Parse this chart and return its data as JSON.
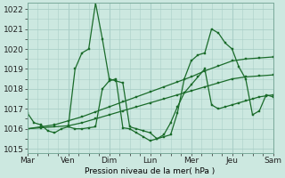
{
  "xlabel": "Pression niveau de la mer( hPa )",
  "bg_color": "#cce8e0",
  "grid_color": "#aacfc8",
  "line_color": "#1a6b2a",
  "ylim": [
    1014.8,
    1022.3
  ],
  "xlim": [
    0,
    18
  ],
  "day_labels": [
    "Mar",
    "Ven",
    "Dim",
    "Lun",
    "Mer",
    "Jeu",
    "Sam"
  ],
  "day_positions": [
    0,
    3,
    6,
    9,
    12,
    15,
    18
  ],
  "yticks": [
    1015,
    1016,
    1017,
    1018,
    1019,
    1020,
    1021,
    1022
  ],
  "font_size": 6.5,
  "line_lw": 0.9,
  "marker_size": 2.0,
  "series": [
    {
      "x": [
        0,
        0.5,
        1,
        1.5,
        2,
        2.5,
        3,
        3.5,
        4,
        4.5,
        5,
        5.5,
        6,
        6.5,
        7,
        7.5,
        8,
        8.5,
        9,
        9.5,
        10,
        10.5,
        11,
        11.5,
        12,
        12.5,
        13,
        13.5,
        14,
        14.5,
        15,
        15.5,
        16,
        16.5,
        17,
        17.5,
        18
      ],
      "y": [
        1016.8,
        1016.3,
        1016.2,
        1015.9,
        1015.8,
        1016.0,
        1016.1,
        1019.0,
        1019.8,
        1020.0,
        1022.3,
        1020.5,
        1018.5,
        1018.4,
        1018.3,
        1016.1,
        1016.0,
        1015.9,
        1015.8,
        1015.5,
        1015.6,
        1015.7,
        1016.8,
        1018.5,
        1019.4,
        1019.7,
        1019.8,
        1021.0,
        1020.8,
        1020.3,
        1020.0,
        1019.1,
        1018.5,
        1016.7,
        1016.9,
        1017.7,
        1017.6
      ]
    },
    {
      "x": [
        3,
        3.5,
        4,
        4.5,
        5,
        5.5,
        6,
        6.5,
        7,
        7.5,
        8,
        8.5,
        9,
        9.5,
        10,
        10.5,
        11,
        11.5,
        12,
        12.5,
        13,
        13.5,
        14,
        14.5,
        15,
        15.5,
        16,
        16.5,
        17,
        17.5,
        18
      ],
      "y": [
        1016.1,
        1016.0,
        1016.0,
        1016.05,
        1016.1,
        1018.0,
        1018.4,
        1018.5,
        1016.05,
        1016.0,
        1015.8,
        1015.6,
        1015.4,
        1015.5,
        1015.7,
        1016.3,
        1017.1,
        1017.8,
        1018.2,
        1018.6,
        1019.0,
        1017.2,
        1017.0,
        1017.1,
        1017.2,
        1017.3,
        1017.4,
        1017.5,
        1017.6,
        1017.65,
        1017.7
      ]
    },
    {
      "x": [
        0,
        1,
        2,
        3,
        4,
        5,
        6,
        7,
        8,
        9,
        10,
        11,
        12,
        13,
        14,
        15,
        16,
        17,
        18
      ],
      "y": [
        1016.0,
        1016.05,
        1016.1,
        1016.15,
        1016.3,
        1016.5,
        1016.7,
        1016.9,
        1017.1,
        1017.3,
        1017.5,
        1017.7,
        1017.9,
        1018.1,
        1018.3,
        1018.5,
        1018.6,
        1018.65,
        1018.7
      ]
    },
    {
      "x": [
        0,
        1,
        2,
        3,
        4,
        5,
        6,
        7,
        8,
        9,
        10,
        11,
        12,
        13,
        14,
        15,
        16,
        17,
        18
      ],
      "y": [
        1016.0,
        1016.1,
        1016.2,
        1016.4,
        1016.6,
        1016.85,
        1017.1,
        1017.35,
        1017.6,
        1017.85,
        1018.1,
        1018.35,
        1018.6,
        1018.9,
        1019.15,
        1019.4,
        1019.5,
        1019.55,
        1019.6
      ]
    }
  ]
}
